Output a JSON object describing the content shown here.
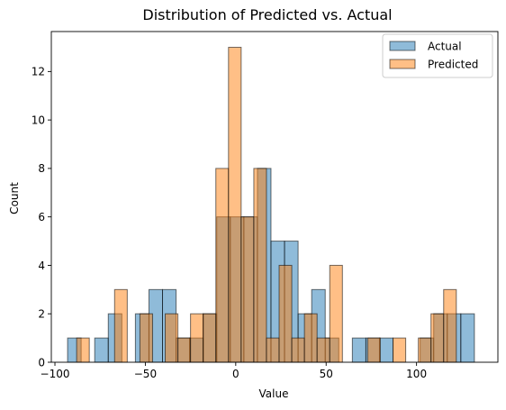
{
  "chart_data": {
    "type": "histogram",
    "title": "Distribution of Predicted vs. Actual",
    "xlabel": "Value",
    "ylabel": "Count",
    "xlim": [
      -102,
      145
    ],
    "ylim": [
      0,
      13.65
    ],
    "xticks": [
      -100,
      -50,
      0,
      50,
      100
    ],
    "yticks": [
      0,
      2,
      4,
      6,
      8,
      10,
      12
    ],
    "legend_position": "top-right",
    "series": [
      {
        "name": "Actual",
        "color": "#1f77b4",
        "bin_width": 7.5,
        "bins": [
          {
            "start": -93.0,
            "count": 1
          },
          {
            "start": -85.5,
            "count": 0
          },
          {
            "start": -78.0,
            "count": 1
          },
          {
            "start": -70.5,
            "count": 2
          },
          {
            "start": -63.0,
            "count": 0
          },
          {
            "start": -55.5,
            "count": 2
          },
          {
            "start": -48.0,
            "count": 3
          },
          {
            "start": -40.5,
            "count": 3
          },
          {
            "start": -33.0,
            "count": 1
          },
          {
            "start": -25.5,
            "count": 1
          },
          {
            "start": -18.0,
            "count": 2
          },
          {
            "start": -10.5,
            "count": 6
          },
          {
            "start": -3.0,
            "count": 6
          },
          {
            "start": 4.5,
            "count": 6
          },
          {
            "start": 12.0,
            "count": 8
          },
          {
            "start": 19.5,
            "count": 5
          },
          {
            "start": 27.0,
            "count": 5
          },
          {
            "start": 34.5,
            "count": 2
          },
          {
            "start": 42.0,
            "count": 3
          },
          {
            "start": 49.5,
            "count": 1
          },
          {
            "start": 57.0,
            "count": 0
          },
          {
            "start": 64.5,
            "count": 1
          },
          {
            "start": 72.0,
            "count": 1
          },
          {
            "start": 79.5,
            "count": 1
          },
          {
            "start": 87.0,
            "count": 0
          },
          {
            "start": 94.5,
            "count": 0
          },
          {
            "start": 102.0,
            "count": 1
          },
          {
            "start": 109.5,
            "count": 2
          },
          {
            "start": 117.0,
            "count": 2
          },
          {
            "start": 124.5,
            "count": 2
          }
        ]
      },
      {
        "name": "Predicted",
        "color": "#ff7f0e",
        "bin_width": 7.0,
        "bins": [
          {
            "start": -88.0,
            "count": 1
          },
          {
            "start": -81.0,
            "count": 0
          },
          {
            "start": -74.0,
            "count": 0
          },
          {
            "start": -67.0,
            "count": 3
          },
          {
            "start": -60.0,
            "count": 0
          },
          {
            "start": -53.0,
            "count": 2
          },
          {
            "start": -46.0,
            "count": 0
          },
          {
            "start": -39.0,
            "count": 2
          },
          {
            "start": -32.0,
            "count": 1
          },
          {
            "start": -25.0,
            "count": 2
          },
          {
            "start": -18.0,
            "count": 2
          },
          {
            "start": -11.0,
            "count": 8
          },
          {
            "start": -4.0,
            "count": 13
          },
          {
            "start": 3.0,
            "count": 6
          },
          {
            "start": 10.0,
            "count": 8
          },
          {
            "start": 17.0,
            "count": 1
          },
          {
            "start": 24.0,
            "count": 4
          },
          {
            "start": 31.0,
            "count": 1
          },
          {
            "start": 38.0,
            "count": 2
          },
          {
            "start": 45.0,
            "count": 1
          },
          {
            "start": 52.0,
            "count": 4
          },
          {
            "start": 59.0,
            "count": 0
          },
          {
            "start": 66.0,
            "count": 0
          },
          {
            "start": 73.0,
            "count": 1
          },
          {
            "start": 80.0,
            "count": 0
          },
          {
            "start": 87.0,
            "count": 1
          },
          {
            "start": 94.0,
            "count": 0
          },
          {
            "start": 101.0,
            "count": 1
          },
          {
            "start": 108.0,
            "count": 2
          },
          {
            "start": 115.0,
            "count": 3
          }
        ]
      }
    ]
  }
}
